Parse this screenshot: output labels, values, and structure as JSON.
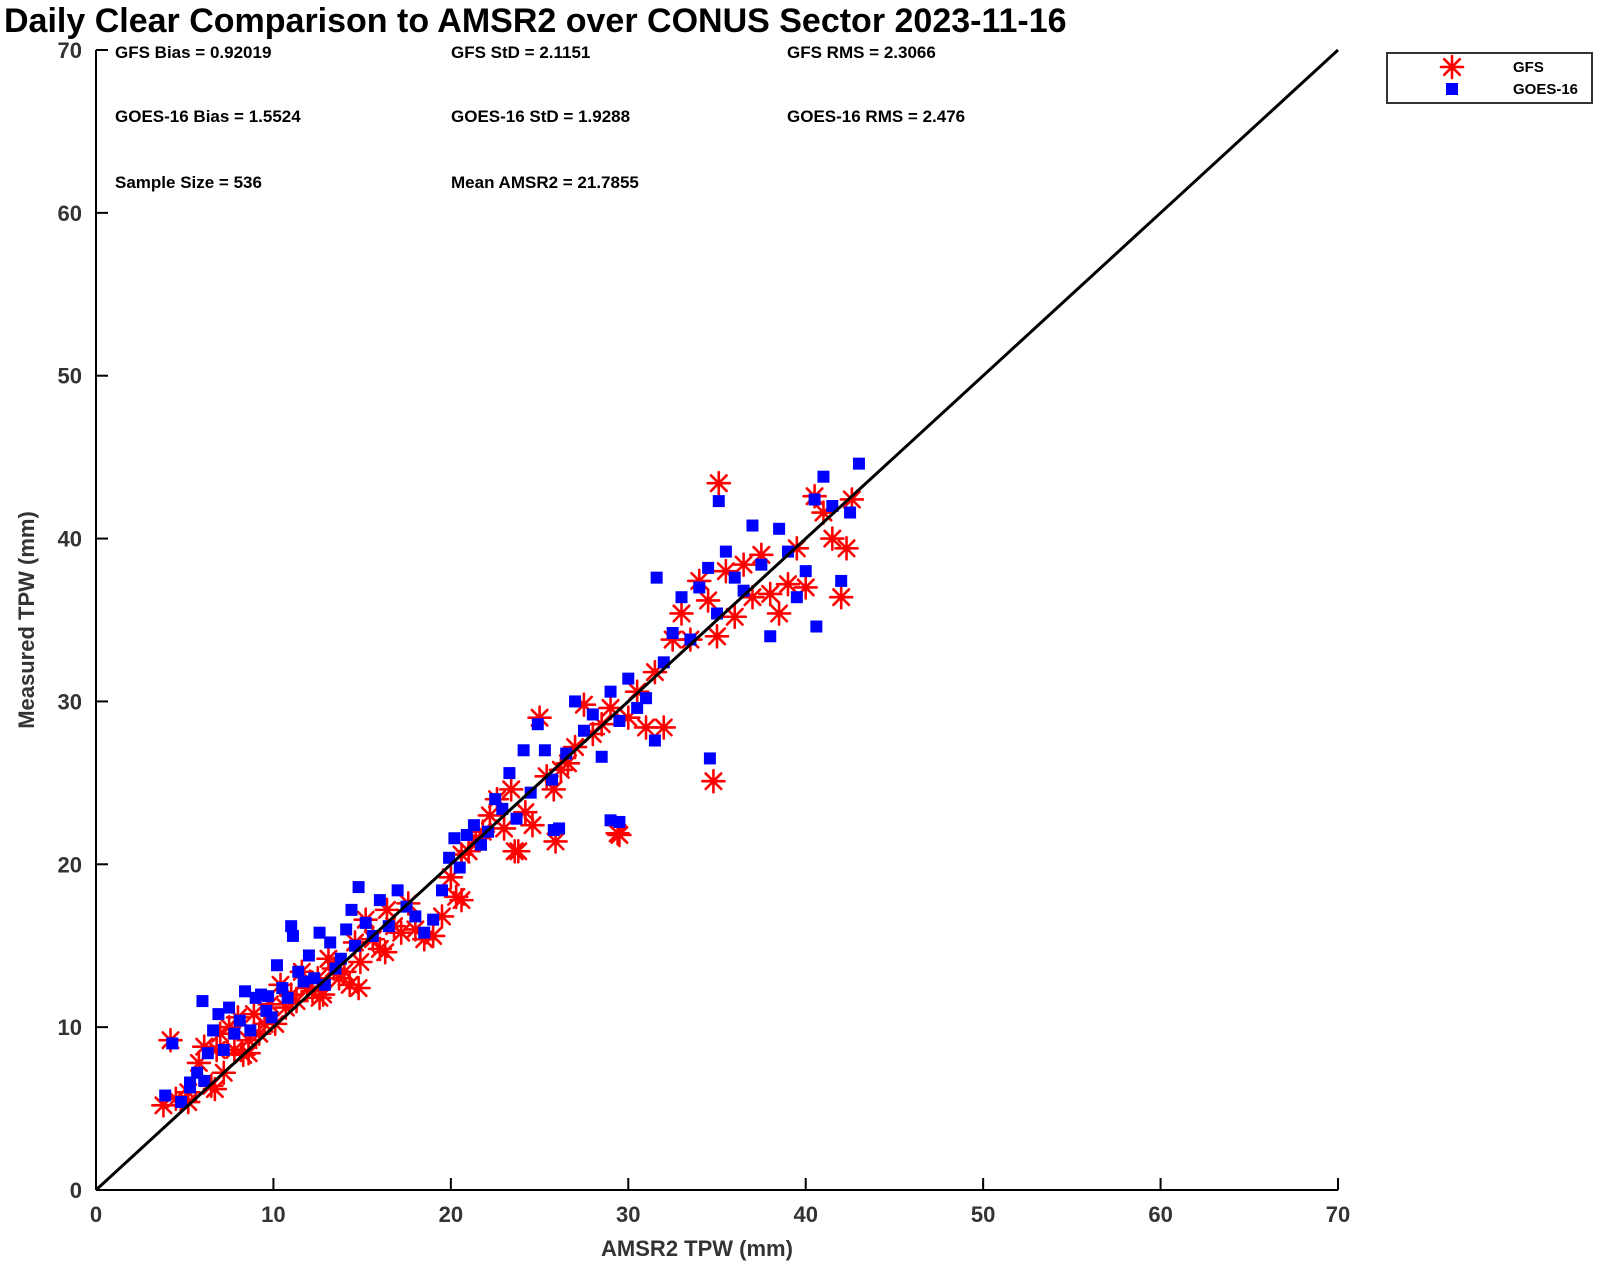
{
  "chart_data": {
    "type": "scatter",
    "title": "Daily Clear Comparison to AMSR2 over CONUS Sector 2023-11-16",
    "xlabel": "AMSR2 TPW (mm)",
    "ylabel": "Measured TPW (mm)",
    "xlim": [
      0,
      70
    ],
    "ylim": [
      0,
      70
    ],
    "xticks": [
      "0",
      "10",
      "20",
      "30",
      "40",
      "50",
      "60",
      "70"
    ],
    "yticks": [
      "0",
      "10",
      "20",
      "30",
      "40",
      "50",
      "60",
      "70"
    ],
    "grid": false,
    "legend_position": "top-right, outside plot",
    "reference_line": {
      "x": [
        0,
        70
      ],
      "y": [
        0,
        70
      ]
    },
    "stats": [
      "GFS Bias = 0.92019",
      "GFS StD = 2.1151",
      "GFS RMS = 2.3066",
      "GOES-16 Bias = 1.5524",
      "GOES-16 StD = 1.9288",
      "GOES-16 RMS = 2.476",
      "Sample Size = 536",
      "Mean AMSR2 = 21.7855"
    ],
    "series": [
      {
        "name": "GFS",
        "color": "#ff0000",
        "marker": "asterisk",
        "x": [
          3.8,
          4.2,
          4.5,
          5.2,
          5.8,
          6.1,
          6.5,
          6.8,
          7.0,
          7.2,
          7.5,
          7.8,
          8.0,
          8.3,
          8.6,
          8.9,
          9.2,
          9.5,
          9.8,
          10.1,
          10.4,
          10.7,
          11.0,
          11.3,
          11.6,
          11.9,
          12.2,
          12.5,
          12.8,
          13.1,
          13.4,
          13.7,
          14.0,
          14.3,
          14.6,
          14.9,
          15.2,
          15.6,
          16.0,
          16.4,
          16.8,
          17.2,
          17.6,
          18.0,
          18.5,
          19.0,
          19.5,
          20.0,
          20.3,
          20.6,
          21.0,
          21.4,
          21.8,
          22.2,
          22.6,
          23.0,
          23.4,
          23.8,
          24.2,
          24.6,
          25.0,
          25.4,
          25.8,
          26.2,
          26.6,
          27.0,
          27.5,
          28.0,
          28.5,
          29.0,
          29.5,
          30.0,
          30.5,
          31.0,
          31.5,
          32.0,
          32.5,
          33.0,
          33.5,
          34.0,
          34.5,
          35.0,
          35.5,
          36.0,
          36.5,
          37.0,
          37.5,
          38.0,
          38.5,
          39.0,
          39.5,
          40.0,
          40.5,
          41.0,
          41.5,
          42.0,
          42.3,
          42.6,
          35.1,
          34.8,
          29.4,
          23.6,
          25.9,
          20.6,
          14.8,
          6.7,
          5.2,
          12.6,
          8.6,
          16.3
        ],
        "y": [
          5.2,
          9.2,
          5.6,
          6.0,
          7.8,
          8.8,
          6.4,
          8.6,
          9.6,
          7.2,
          10.0,
          8.6,
          10.6,
          8.3,
          9.2,
          10.8,
          9.6,
          10.2,
          11.4,
          10.2,
          12.6,
          11.2,
          12.0,
          11.6,
          13.4,
          12.4,
          12.2,
          13.0,
          12.0,
          14.2,
          13.6,
          13.0,
          13.4,
          12.6,
          15.2,
          14.0,
          16.6,
          15.4,
          14.8,
          17.2,
          16.2,
          15.8,
          17.6,
          16.0,
          15.4,
          15.6,
          16.8,
          19.2,
          18.0,
          20.6,
          20.8,
          21.6,
          22.0,
          23.0,
          24.0,
          22.2,
          24.6,
          20.8,
          23.2,
          22.4,
          29.0,
          25.4,
          24.6,
          25.8,
          26.2,
          27.2,
          29.8,
          28.0,
          28.6,
          29.6,
          21.8,
          29.0,
          30.6,
          28.4,
          31.8,
          28.4,
          33.8,
          35.4,
          33.8,
          37.4,
          36.2,
          34.0,
          38.0,
          35.2,
          38.4,
          36.4,
          39.0,
          36.6,
          35.4,
          37.2,
          39.4,
          37.0,
          42.6,
          41.6,
          40.0,
          36.4,
          39.4,
          42.4,
          43.4,
          25.1,
          21.9,
          20.8,
          21.4,
          17.8,
          12.4,
          6.2,
          5.4,
          11.8,
          8.4,
          14.6
        ]
      },
      {
        "name": "GOES-16",
        "color": "#0000ff",
        "marker": "square",
        "x": [
          3.9,
          4.3,
          4.8,
          5.3,
          5.7,
          6.0,
          6.3,
          6.6,
          6.9,
          7.2,
          7.5,
          7.8,
          8.1,
          8.4,
          8.7,
          9.0,
          9.3,
          9.6,
          9.9,
          10.2,
          10.5,
          10.8,
          11.1,
          11.4,
          11.7,
          12.0,
          12.3,
          12.6,
          12.9,
          13.2,
          13.5,
          13.8,
          14.1,
          14.4,
          14.8,
          15.2,
          15.6,
          16.0,
          16.5,
          17.0,
          17.5,
          18.0,
          18.5,
          19.0,
          19.5,
          19.9,
          20.2,
          20.5,
          20.9,
          21.3,
          21.7,
          22.1,
          22.5,
          22.9,
          23.3,
          23.7,
          24.1,
          24.5,
          24.9,
          25.3,
          25.7,
          26.1,
          26.5,
          27.0,
          27.5,
          28.0,
          28.5,
          29.0,
          29.5,
          30.0,
          30.5,
          31.0,
          31.5,
          32.0,
          32.5,
          33.0,
          33.5,
          34.0,
          34.5,
          35.0,
          35.5,
          36.0,
          36.5,
          37.0,
          37.5,
          38.0,
          38.5,
          39.0,
          39.5,
          40.0,
          40.5,
          41.0,
          41.5,
          42.0,
          42.5,
          43.0,
          34.6,
          35.1,
          29.0,
          29.5,
          25.8,
          11.0,
          14.6,
          6.1,
          5.3,
          9.7,
          31.6,
          40.6
        ],
        "y": [
          5.8,
          9.0,
          5.4,
          6.6,
          7.2,
          11.6,
          8.4,
          9.8,
          10.8,
          8.6,
          11.2,
          9.6,
          10.4,
          12.2,
          9.8,
          11.8,
          12.0,
          11.0,
          10.6,
          13.8,
          12.4,
          11.8,
          15.6,
          13.4,
          12.8,
          14.4,
          13.0,
          15.8,
          12.6,
          15.2,
          13.6,
          14.2,
          16.0,
          17.2,
          18.6,
          16.4,
          15.6,
          17.8,
          16.2,
          18.4,
          17.4,
          16.8,
          15.8,
          16.6,
          18.4,
          20.4,
          21.6,
          19.8,
          21.8,
          22.4,
          21.2,
          22.0,
          24.0,
          23.4,
          25.6,
          22.8,
          27.0,
          24.4,
          28.6,
          27.0,
          25.2,
          22.2,
          26.8,
          30.0,
          28.2,
          29.2,
          26.6,
          30.6,
          28.8,
          31.4,
          29.6,
          30.2,
          27.6,
          32.4,
          34.2,
          36.4,
          33.8,
          37.0,
          38.2,
          35.4,
          39.2,
          37.6,
          36.8,
          40.8,
          38.4,
          34.0,
          40.6,
          39.2,
          36.4,
          38.0,
          42.4,
          43.8,
          42.0,
          37.4,
          41.6,
          44.6,
          26.5,
          42.3,
          22.7,
          22.6,
          22.1,
          16.2,
          15.0,
          6.7,
          6.3,
          11.9,
          37.6,
          34.6
        ]
      }
    ]
  }
}
